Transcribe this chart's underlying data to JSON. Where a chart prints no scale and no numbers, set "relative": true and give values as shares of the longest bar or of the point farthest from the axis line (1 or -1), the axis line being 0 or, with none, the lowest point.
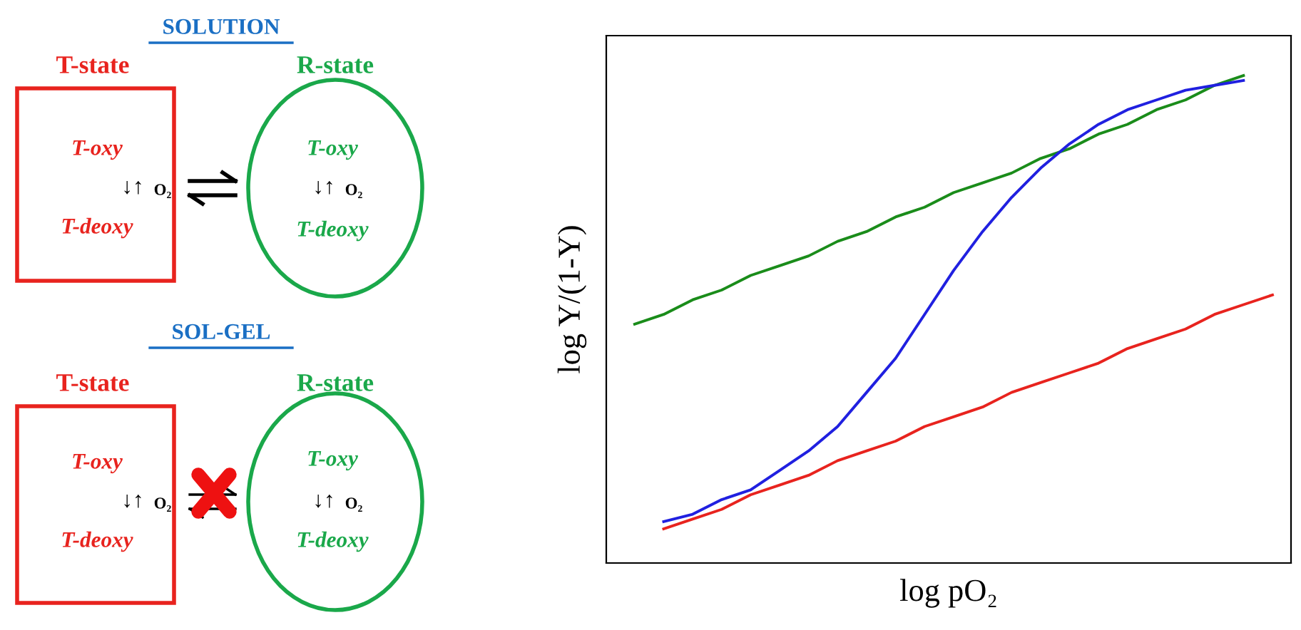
{
  "chart_data": {
    "type": "line",
    "relative": true,
    "xlabel": "log pO₂",
    "ylabel": "log Y/(1-Y)",
    "marker": "none",
    "line_style": "solid",
    "categories": [
      null,
      null,
      null,
      null,
      null,
      null,
      null,
      null,
      null,
      null,
      null,
      null,
      null,
      null,
      null,
      null,
      null,
      null,
      null,
      null,
      null,
      null,
      null
    ],
    "series": [
      {
        "color": "#1a8c1a",
        "values": [
          0.49,
          0.51,
          0.54,
          0.56,
          0.59,
          0.61,
          0.63,
          0.66,
          0.68,
          0.71,
          0.73,
          0.76,
          0.78,
          0.8,
          0.83,
          0.85,
          0.88,
          0.9,
          0.93,
          0.95,
          0.98,
          1.0,
          null
        ]
      },
      {
        "color": "#e8231e",
        "values": [
          null,
          0.07,
          0.09,
          0.11,
          0.14,
          0.16,
          0.18,
          0.21,
          0.23,
          0.25,
          0.28,
          0.3,
          0.32,
          0.35,
          0.37,
          0.39,
          0.41,
          0.44,
          0.46,
          0.48,
          0.51,
          0.53,
          0.55
        ]
      },
      {
        "color": "#2020e0",
        "values": [
          null,
          0.085,
          0.1,
          0.13,
          0.15,
          0.19,
          0.23,
          0.28,
          0.35,
          0.42,
          0.51,
          0.6,
          0.68,
          0.75,
          0.81,
          0.86,
          0.9,
          0.93,
          0.95,
          0.97,
          0.98,
          0.99,
          null
        ]
      }
    ],
    "annotations": [
      "SOLUTION",
      "T-state",
      "R-state",
      "T-oxy",
      "↓↑",
      "O₂",
      "T-deoxy",
      "T-oxy",
      "↓↑",
      "O₂",
      "T-deoxy",
      "SOL-GEL",
      "T-state",
      "R-state",
      "T-oxy",
      "↓↑",
      "O₂",
      "T-deoxy",
      "T-oxy",
      "↓↑",
      "O₂",
      "T-deoxy"
    ]
  }
}
